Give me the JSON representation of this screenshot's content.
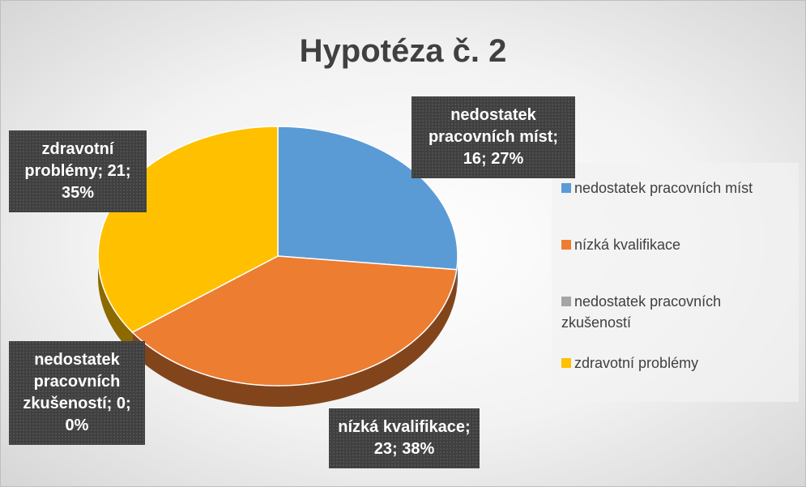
{
  "chart_data": {
    "type": "pie",
    "title": "Hypotéza č. 2",
    "categories": [
      "nedostatek pracovních míst",
      "nízká kvalifikace",
      "nedostatek pracovních zkušeností",
      "zdravotní problémy"
    ],
    "values": [
      16,
      23,
      0,
      21
    ],
    "value_labels": [
      "nedostatek pracovních míst; 16; 27%",
      "nízká kvalifikace; 23; 38%",
      "nedostatek pracovních zkušeností; 0; 0%",
      "zdravotní problémy; 21; 35%"
    ],
    "colors": [
      "#5b9bd5",
      "#ed7d31",
      "#a5a5a5",
      "#ffc000"
    ],
    "legend": "right"
  }
}
